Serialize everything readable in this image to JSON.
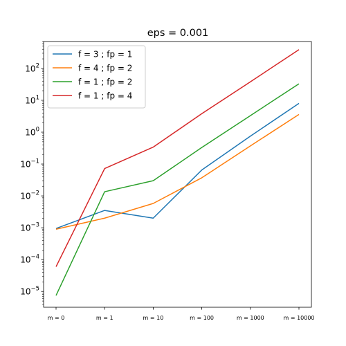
{
  "chart_data": {
    "type": "line",
    "title": "eps = 0.001",
    "xlabel": "",
    "ylabel": "",
    "categories": [
      "m = 0",
      "m = 1",
      "m = 10",
      "m = 100",
      "m = 1000",
      "m = 10000"
    ],
    "yscale": "log",
    "ylim": [
      3.2e-06,
      700
    ],
    "yticks": [
      {
        "value": 1e-05,
        "base": "10",
        "exp": "−5"
      },
      {
        "value": 0.0001,
        "base": "10",
        "exp": "−4"
      },
      {
        "value": 0.001,
        "base": "10",
        "exp": "−3"
      },
      {
        "value": 0.01,
        "base": "10",
        "exp": "−2"
      },
      {
        "value": 0.1,
        "base": "10",
        "exp": "−1"
      },
      {
        "value": 1,
        "base": "10",
        "exp": "0"
      },
      {
        "value": 10,
        "base": "10",
        "exp": "1"
      },
      {
        "value": 100,
        "base": "10",
        "exp": "2"
      }
    ],
    "grid": false,
    "legend_position": "top-left",
    "series": [
      {
        "name": "f = 3 ; fp = 1",
        "color": "#1f77b4",
        "values": [
          0.00095,
          0.0035,
          0.002,
          0.065,
          0.75,
          8.0
        ]
      },
      {
        "name": "f = 4 ; fp = 2",
        "color": "#ff7f0e",
        "values": [
          0.0009,
          0.002,
          0.0058,
          0.037,
          0.37,
          3.6
        ]
      },
      {
        "name": "f = 1 ; fp = 2",
        "color": "#2ca02c",
        "values": [
          7.5e-06,
          0.0135,
          0.03,
          0.33,
          3.3,
          33
        ]
      },
      {
        "name": "f = 1 ; fp = 4",
        "color": "#d62728",
        "values": [
          6e-05,
          0.072,
          0.34,
          3.8,
          38,
          390
        ]
      }
    ]
  }
}
